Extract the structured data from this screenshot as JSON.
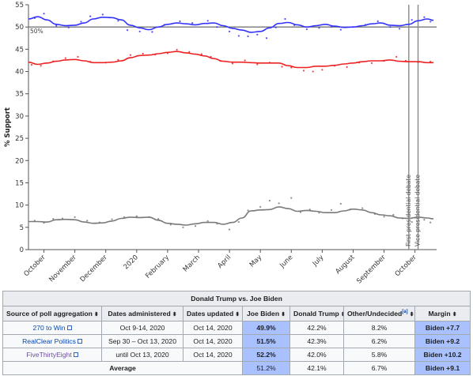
{
  "chart_data": {
    "type": "line",
    "ylabel": "% Support",
    "ylim": [
      0,
      55
    ],
    "yticks": [
      0,
      5,
      10,
      15,
      20,
      25,
      30,
      35,
      40,
      45,
      50,
      55
    ],
    "reference_line": {
      "value": 50,
      "label": "50%"
    },
    "x_labels": [
      "October",
      "November",
      "December",
      "2020",
      "February",
      "March",
      "April",
      "May",
      "June",
      "July",
      "August",
      "September",
      "October"
    ],
    "x_label_positions": [
      0.5,
      1.5,
      2.5,
      3.5,
      4.5,
      5.5,
      6.5,
      7.5,
      8.5,
      9.5,
      10.5,
      11.5,
      12.5
    ],
    "x_range": [
      0,
      13.2
    ],
    "events": [
      {
        "x": 12.3,
        "label": "First presidential debate"
      },
      {
        "x": 12.6,
        "label": "Vice presidential debate"
      }
    ],
    "series": [
      {
        "color": "#3333ff",
        "x": [
          0,
          0.3,
          0.6,
          0.9,
          1.2,
          1.5,
          1.8,
          2.1,
          2.4,
          2.7,
          3.0,
          3.3,
          3.6,
          3.9,
          4.2,
          4.5,
          4.8,
          5.1,
          5.4,
          5.7,
          6.0,
          6.3,
          6.6,
          6.9,
          7.2,
          7.5,
          7.8,
          8.1,
          8.4,
          8.7,
          9.0,
          9.3,
          9.6,
          9.9,
          10.2,
          10.5,
          10.8,
          11.1,
          11.4,
          11.7,
          12.0,
          12.3,
          12.6,
          12.9,
          13.1
        ],
        "values": [
          51.8,
          52.3,
          51.6,
          50.6,
          50.3,
          50.4,
          50.9,
          51.8,
          52.2,
          52.1,
          51.6,
          50.4,
          49.8,
          49.4,
          50.0,
          50.6,
          50.9,
          50.7,
          50.5,
          50.8,
          50.9,
          50.3,
          49.7,
          49.3,
          48.8,
          49.0,
          49.8,
          50.8,
          51.0,
          50.5,
          50.0,
          50.3,
          50.6,
          50.2,
          49.9,
          50.0,
          50.3,
          50.7,
          50.9,
          50.4,
          50.3,
          50.6,
          51.4,
          51.8,
          51.5
        ],
        "dots": [
          [
            0.2,
            52.0
          ],
          [
            0.5,
            53.0
          ],
          [
            0.9,
            50.3
          ],
          [
            1.3,
            49.9
          ],
          [
            1.7,
            51.2
          ],
          [
            2.0,
            52.4
          ],
          [
            2.4,
            52.8
          ],
          [
            2.9,
            51.4
          ],
          [
            3.2,
            49.3
          ],
          [
            3.6,
            49.0
          ],
          [
            4.0,
            48.9
          ],
          [
            4.4,
            50.5
          ],
          [
            4.9,
            51.3
          ],
          [
            5.3,
            50.9
          ],
          [
            5.8,
            51.4
          ],
          [
            6.1,
            50.0
          ],
          [
            6.5,
            49.0
          ],
          [
            6.8,
            48.0
          ],
          [
            7.1,
            47.9
          ],
          [
            7.4,
            48.3
          ],
          [
            7.7,
            47.5
          ],
          [
            8.0,
            49.9
          ],
          [
            8.3,
            51.8
          ],
          [
            8.6,
            50.4
          ],
          [
            9.0,
            49.5
          ],
          [
            9.4,
            49.8
          ],
          [
            9.8,
            50.1
          ],
          [
            10.1,
            49.4
          ],
          [
            10.5,
            50.0
          ],
          [
            10.9,
            50.5
          ],
          [
            11.3,
            51.3
          ],
          [
            11.7,
            50.0
          ],
          [
            12.0,
            49.6
          ],
          [
            12.4,
            51.6
          ],
          [
            12.8,
            52.2
          ],
          [
            13.0,
            51.2
          ]
        ]
      },
      {
        "color": "#ee2222",
        "x": [
          0,
          0.3,
          0.6,
          0.9,
          1.2,
          1.5,
          1.8,
          2.1,
          2.4,
          2.7,
          3.0,
          3.3,
          3.6,
          3.9,
          4.2,
          4.5,
          4.8,
          5.1,
          5.4,
          5.7,
          6.0,
          6.3,
          6.6,
          6.9,
          7.2,
          7.5,
          7.8,
          8.1,
          8.4,
          8.7,
          9.0,
          9.3,
          9.6,
          9.9,
          10.2,
          10.5,
          10.8,
          11.1,
          11.4,
          11.7,
          12.0,
          12.3,
          12.6,
          12.9,
          13.1
        ],
        "values": [
          42.1,
          41.6,
          41.9,
          42.3,
          42.6,
          42.7,
          42.4,
          42.0,
          42.0,
          42.1,
          42.4,
          43.1,
          43.6,
          43.7,
          44.0,
          44.3,
          44.5,
          44.2,
          43.9,
          43.5,
          42.9,
          42.3,
          42.1,
          42.1,
          42.0,
          41.9,
          41.9,
          41.9,
          41.3,
          40.9,
          40.9,
          41.2,
          41.2,
          41.4,
          41.7,
          41.9,
          42.2,
          42.4,
          42.4,
          42.6,
          42.3,
          42.2,
          42.2,
          42.0,
          42.0
        ],
        "dots": [
          [
            0.1,
            41.5
          ],
          [
            0.4,
            41.3
          ],
          [
            0.8,
            42.3
          ],
          [
            1.2,
            43.0
          ],
          [
            1.6,
            43.3
          ],
          [
            2.0,
            42.2
          ],
          [
            2.5,
            42.0
          ],
          [
            2.9,
            42.6
          ],
          [
            3.3,
            43.7
          ],
          [
            3.7,
            44.0
          ],
          [
            4.1,
            43.8
          ],
          [
            4.5,
            44.1
          ],
          [
            4.8,
            44.9
          ],
          [
            5.2,
            44.4
          ],
          [
            5.6,
            43.9
          ],
          [
            5.9,
            43.3
          ],
          [
            6.2,
            42.4
          ],
          [
            6.6,
            41.8
          ],
          [
            7.0,
            42.5
          ],
          [
            7.4,
            41.6
          ],
          [
            7.8,
            42.0
          ],
          [
            8.2,
            41.1
          ],
          [
            8.5,
            40.9
          ],
          [
            8.9,
            40.2
          ],
          [
            9.2,
            40.0
          ],
          [
            9.5,
            40.4
          ],
          [
            9.9,
            41.3
          ],
          [
            10.3,
            41.0
          ],
          [
            10.7,
            42.0
          ],
          [
            11.1,
            41.9
          ],
          [
            11.5,
            42.4
          ],
          [
            11.9,
            43.3
          ],
          [
            12.2,
            42.4
          ],
          [
            12.6,
            42.1
          ],
          [
            13.0,
            42.2
          ]
        ]
      },
      {
        "color": "#7a7a7a",
        "x": [
          0,
          0.3,
          0.6,
          0.9,
          1.2,
          1.5,
          1.8,
          2.1,
          2.4,
          2.7,
          3.0,
          3.3,
          3.6,
          3.9,
          4.2,
          4.5,
          4.8,
          5.1,
          5.4,
          5.7,
          6.0,
          6.3,
          6.6,
          6.9,
          7.2,
          7.5,
          7.8,
          8.1,
          8.4,
          8.7,
          9.0,
          9.3,
          9.6,
          9.9,
          10.2,
          10.5,
          10.8,
          11.1,
          11.4,
          11.7,
          12.0,
          12.3,
          12.6,
          12.9,
          13.1
        ],
        "values": [
          6.3,
          6.3,
          6.2,
          6.7,
          6.8,
          6.7,
          6.2,
          5.9,
          6.0,
          6.4,
          7.0,
          7.3,
          7.2,
          7.3,
          6.6,
          5.9,
          5.7,
          5.5,
          5.8,
          6.1,
          6.1,
          5.7,
          6.1,
          7.1,
          8.7,
          8.9,
          9.0,
          9.6,
          9.2,
          8.6,
          8.8,
          8.6,
          8.3,
          8.3,
          8.7,
          9.1,
          8.9,
          8.3,
          7.8,
          7.6,
          7.1,
          7.0,
          7.3,
          7.1,
          6.9
        ],
        "dots": [
          [
            0.2,
            6.5
          ],
          [
            0.5,
            6.0
          ],
          [
            0.8,
            6.9
          ],
          [
            1.1,
            7.0
          ],
          [
            1.5,
            7.3
          ],
          [
            1.9,
            6.5
          ],
          [
            2.3,
            6.1
          ],
          [
            2.7,
            6.8
          ],
          [
            3.1,
            7.3
          ],
          [
            3.5,
            7.5
          ],
          [
            3.9,
            7.3
          ],
          [
            4.2,
            6.9
          ],
          [
            4.6,
            5.6
          ],
          [
            5.0,
            5.0
          ],
          [
            5.4,
            5.3
          ],
          [
            5.8,
            6.4
          ],
          [
            6.1,
            5.8
          ],
          [
            6.5,
            4.5
          ],
          [
            6.8,
            6.2
          ],
          [
            7.1,
            8.8
          ],
          [
            7.5,
            9.6
          ],
          [
            7.8,
            11.0
          ],
          [
            8.1,
            10.4
          ],
          [
            8.5,
            11.6
          ],
          [
            8.8,
            8.4
          ],
          [
            9.1,
            9.0
          ],
          [
            9.4,
            8.3
          ],
          [
            9.8,
            8.9
          ],
          [
            10.1,
            10.3
          ],
          [
            10.4,
            9.0
          ],
          [
            10.8,
            9.3
          ],
          [
            11.2,
            8.0
          ],
          [
            11.5,
            7.4
          ],
          [
            11.8,
            7.8
          ],
          [
            12.1,
            7.0
          ],
          [
            12.4,
            6.2
          ],
          [
            12.8,
            6.7
          ],
          [
            13.0,
            6.1
          ]
        ]
      }
    ]
  },
  "table": {
    "caption": "Donald Trump vs. Joe Biden",
    "headers": [
      "Source of poll aggregation",
      "Dates administered",
      "Dates updated",
      "Joe Biden",
      "Donald Trump",
      "Other/Undecided",
      "Margin"
    ],
    "header_note": "[a]",
    "sort_glyph": "⬍",
    "rows": [
      {
        "source": "270 to Win",
        "administered": "Oct 9-14, 2020",
        "updated": "Oct 14, 2020",
        "biden": "49.9%",
        "trump": "42.2%",
        "other": "8.2%",
        "margin": "Biden +7.7"
      },
      {
        "source": "RealClear Politics",
        "administered": "Sep 30 – Oct 13, 2020",
        "updated": "Oct 14, 2020",
        "biden": "51.5%",
        "trump": "42.3%",
        "other": "6.2%",
        "margin": "Biden +9.2"
      },
      {
        "source": "FiveThirtyEight",
        "administered": "until Oct 13, 2020",
        "updated": "Oct 14, 2020",
        "biden": "52.2%",
        "trump": "42.0%",
        "other": "5.8%",
        "margin": "Biden +10.2"
      }
    ],
    "average": {
      "label": "Average",
      "biden": "51.2%",
      "trump": "42.1%",
      "other": "6.7%",
      "margin": "Biden +9.1"
    }
  }
}
